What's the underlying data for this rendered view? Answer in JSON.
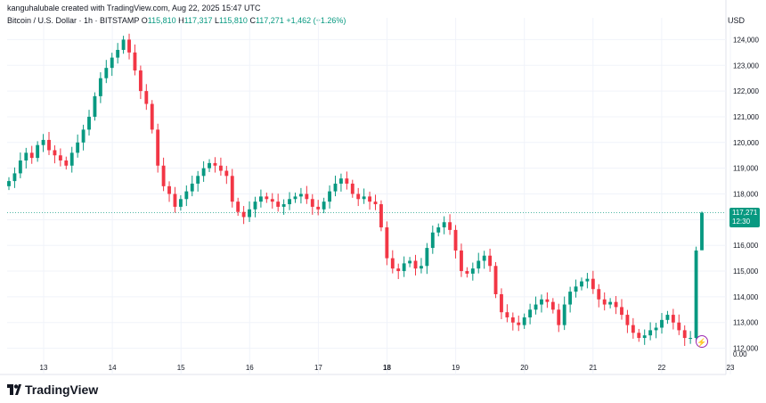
{
  "header": {
    "credit": "kanguhalubale created with TradingView.com, Aug 22, 2025 15:47 UTC",
    "symbol": "Bitcoin / U.S. Dollar · 1h · BITSTAMP",
    "open_label": "O",
    "open": "115,810",
    "high_label": "H",
    "high": "117,317",
    "low_label": "L",
    "low": "115,810",
    "close_label": "C",
    "close": "117,271",
    "change": "+1,462 (+1.26%)"
  },
  "axis": {
    "currency": "USD",
    "y_ticks": [
      "124,000",
      "123,000",
      "122,000",
      "121,000",
      "120,000",
      "119,000",
      "118,000",
      "117,000",
      "116,000",
      "115,000",
      "114,000",
      "113,000",
      "112,000",
      "0.00"
    ],
    "x_ticks": [
      "13",
      "14",
      "15",
      "16",
      "17",
      "18",
      "19",
      "20",
      "21",
      "22",
      "23"
    ]
  },
  "price_tag": {
    "price": "117,271",
    "time": "12:30"
  },
  "brand": {
    "name": "TradingView"
  },
  "colors": {
    "up": "#089981",
    "down": "#f23645",
    "grid": "#f0f3fa",
    "tag": "#089981"
  },
  "chart_data": {
    "type": "candlestick",
    "ylim": [
      111500,
      124500
    ],
    "x_ticks": [
      "13",
      "14",
      "15",
      "16",
      "17",
      "18",
      "19",
      "20",
      "21",
      "22",
      "23"
    ],
    "close_series": [
      118500,
      118800,
      119300,
      119600,
      119400,
      119900,
      120100,
      119700,
      119500,
      119300,
      119100,
      119600,
      120000,
      120500,
      121000,
      121800,
      122500,
      122900,
      123300,
      123600,
      124000,
      123500,
      122800,
      122000,
      121500,
      120500,
      119100,
      118300,
      118000,
      117500,
      117800,
      118100,
      118400,
      118700,
      119000,
      119200,
      119100,
      118900,
      118700,
      117700,
      117300,
      117100,
      117400,
      117700,
      117900,
      117800,
      117700,
      117500,
      117600,
      117800,
      117900,
      118000,
      117800,
      117500,
      117400,
      117700,
      118100,
      118400,
      118600,
      118400,
      118000,
      117800,
      117900,
      117700,
      117600,
      116700,
      115500,
      115100,
      115000,
      115300,
      115400,
      115100,
      115200,
      115900,
      116500,
      116700,
      116900,
      116600,
      115800,
      115000,
      114900,
      115100,
      115400,
      115600,
      115200,
      114100,
      113400,
      113200,
      113000,
      112900,
      113200,
      113500,
      113700,
      113900,
      113800,
      113500,
      112900,
      113700,
      114200,
      114400,
      114600,
      114700,
      114300,
      113900,
      113700,
      113800,
      113600,
      113300,
      112900,
      112600,
      112400,
      112500,
      112700,
      112800,
      113100,
      113300,
      113000,
      112700,
      112400,
      112400,
      115800,
      117271
    ],
    "last": {
      "open": 115810,
      "high": 117317,
      "low": 115810,
      "close": 117271
    }
  }
}
